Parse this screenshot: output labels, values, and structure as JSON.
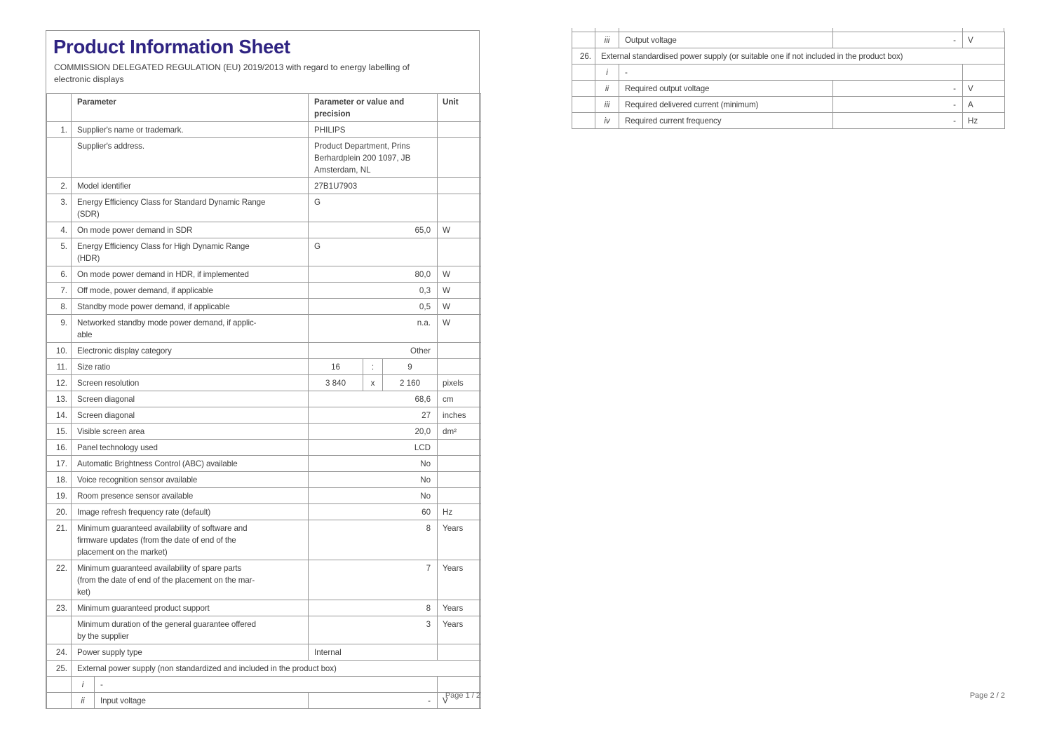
{
  "colors": {
    "title": "#2f2482",
    "text": "#3d3d3d",
    "border": "#979797",
    "footer": "#666666"
  },
  "page1": {
    "title": "Product Information Sheet",
    "subtitle": "COMMISSION DELEGATED REGULATION (EU) 2019/2013 with regard to energy labelling of\nelectronic displays",
    "header": {
      "num": "",
      "param": "Parameter",
      "value": "Parameter or value and\nprecision",
      "unit": "Unit"
    },
    "rows": [
      {
        "type": "normal",
        "num": "1.",
        "param": "Supplier's name or trademark.",
        "value": "PHILIPS",
        "unit": "",
        "align": "l"
      },
      {
        "type": "normal",
        "num": "",
        "param": "Supplier's address.",
        "value": "Product Department, Prins\nBerhardplein 200 1097, JB\nAmsterdam, NL",
        "unit": "",
        "align": "l"
      },
      {
        "type": "normal",
        "num": "2.",
        "param": "Model identifier",
        "value": "27B1U7903",
        "unit": "",
        "align": "l"
      },
      {
        "type": "normal",
        "num": "3.",
        "param": "Energy Efficiency Class for Standard Dynamic Range\n(SDR)",
        "value": "G",
        "unit": "",
        "align": "l"
      },
      {
        "type": "normal",
        "num": "4.",
        "param": "On mode power demand in SDR",
        "value": "65,0",
        "unit": "W",
        "align": "r"
      },
      {
        "type": "normal",
        "num": "5.",
        "param": "Energy Efficiency Class for High Dynamic Range\n(HDR)",
        "value": "G",
        "unit": "",
        "align": "l"
      },
      {
        "type": "normal",
        "num": "6.",
        "param": "On mode power demand in HDR, if implemented",
        "value": "80,0",
        "unit": "W",
        "align": "r"
      },
      {
        "type": "normal",
        "num": "7.",
        "param": "Off mode, power demand, if applicable",
        "value": "0,3",
        "unit": "W",
        "align": "r"
      },
      {
        "type": "normal",
        "num": "8.",
        "param": "Standby mode power demand, if applicable",
        "value": "0,5",
        "unit": "W",
        "align": "r"
      },
      {
        "type": "normal",
        "num": "9.",
        "param": "Networked standby mode power demand, if applic-\nable",
        "value": "n.a.",
        "unit": "W",
        "align": "r"
      },
      {
        "type": "normal",
        "num": "10.",
        "param": "Electronic display category",
        "value": "Other",
        "unit": "",
        "align": "r"
      },
      {
        "type": "split",
        "num": "11.",
        "param": "Size ratio",
        "v1": "16",
        "sep": ":",
        "v2": "9",
        "unit": ""
      },
      {
        "type": "split",
        "num": "12.",
        "param": "Screen resolution",
        "v1": "3 840",
        "sep": "x",
        "v2": "2 160",
        "unit": "pixels"
      },
      {
        "type": "normal",
        "num": "13.",
        "param": "Screen diagonal",
        "value": "68,6",
        "unit": "cm",
        "align": "r"
      },
      {
        "type": "normal",
        "num": "14.",
        "param": "Screen diagonal",
        "value": "27",
        "unit": "inches",
        "align": "r"
      },
      {
        "type": "normal",
        "num": "15.",
        "param": "Visible screen area",
        "value": "20,0",
        "unit": "dm²",
        "align": "r"
      },
      {
        "type": "normal",
        "num": "16.",
        "param": "Panel technology used",
        "value": "LCD",
        "unit": "",
        "align": "r"
      },
      {
        "type": "normal",
        "num": "17.",
        "param": "Automatic Brightness Control (ABC) available",
        "value": "No",
        "unit": "",
        "align": "r"
      },
      {
        "type": "normal",
        "num": "18.",
        "param": "Voice recognition sensor available",
        "value": "No",
        "unit": "",
        "align": "r"
      },
      {
        "type": "normal",
        "num": "19.",
        "param": "Room presence sensor available",
        "value": "No",
        "unit": "",
        "align": "r"
      },
      {
        "type": "normal",
        "num": "20.",
        "param": "Image refresh frequency rate (default)",
        "value": "60",
        "unit": "Hz",
        "align": "r"
      },
      {
        "type": "normal",
        "num": "21.",
        "param": "Minimum guaranteed availability of software and\nfirmware updates (from the date of end of the\nplacement on the market)",
        "value": "8",
        "unit": "Years",
        "align": "r"
      },
      {
        "type": "normal",
        "num": "22.",
        "param": "Minimum guaranteed availability of spare parts\n(from the date of end of the placement on the mar-\nket)",
        "value": "7",
        "unit": "Years",
        "align": "r"
      },
      {
        "type": "normal",
        "num": "23.",
        "param": "Minimum guaranteed product support",
        "value": "8",
        "unit": "Years",
        "align": "r"
      },
      {
        "type": "normal",
        "num": "",
        "param": "Minimum duration of the general guarantee offered\nby the supplier",
        "value": "3",
        "unit": "Years",
        "align": "r"
      },
      {
        "type": "normal",
        "num": "24.",
        "param": "Power supply type",
        "value": "Internal",
        "unit": "",
        "align": "l"
      },
      {
        "type": "span",
        "num": "25.",
        "text": "External power supply (non standardized and included in the product box)"
      },
      {
        "type": "submerged",
        "sub": "i",
        "text": "-"
      },
      {
        "type": "sub",
        "sub": "ii",
        "param": "Input voltage",
        "value": "-",
        "unit": "V"
      }
    ],
    "footer": "Page 1 / 2"
  },
  "page2": {
    "rows": [
      {
        "type": "sub",
        "sub": "iii",
        "param": "Output voltage",
        "value": "-",
        "unit": "V"
      },
      {
        "type": "span",
        "num": "26.",
        "text": "External standardised power supply (or suitable one if not included in the product box)"
      },
      {
        "type": "submerged",
        "sub": "i",
        "text": "-"
      },
      {
        "type": "sub",
        "sub": "ii",
        "param": "Required output voltage",
        "value": "-",
        "unit": "V"
      },
      {
        "type": "sub",
        "sub": "iii",
        "param": "Required delivered current (minimum)",
        "value": "-",
        "unit": "A"
      },
      {
        "type": "sub",
        "sub": "iv",
        "param": "Required current frequency",
        "value": "-",
        "unit": "Hz"
      }
    ],
    "footer": "Page 2 / 2"
  }
}
